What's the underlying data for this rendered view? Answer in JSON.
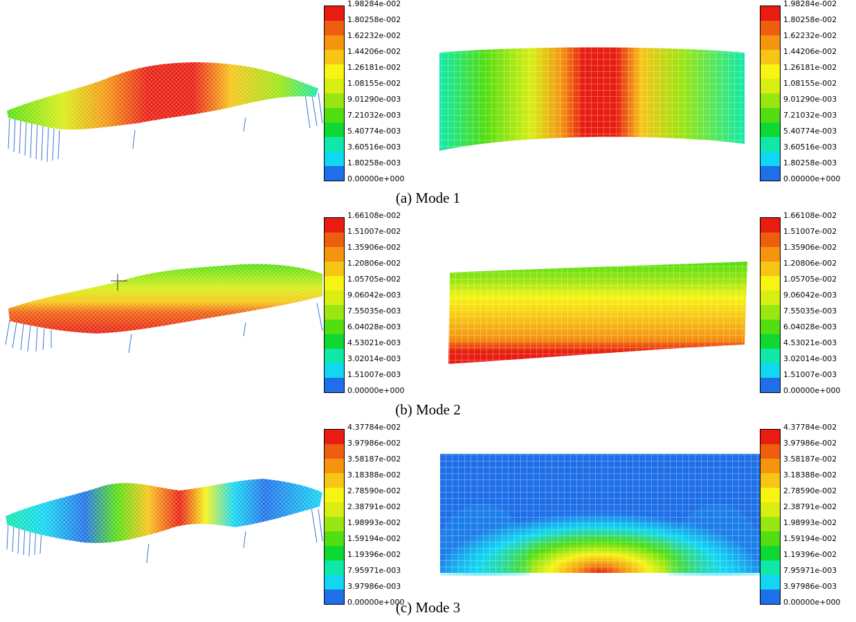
{
  "palette": [
    "#1f6fe8",
    "#11d7f2",
    "#10e8a8",
    "#10d832",
    "#52de10",
    "#98e612",
    "#d8ee12",
    "#f7f312",
    "#f7c514",
    "#f4940f",
    "#ee5e0f",
    "#e81c10"
  ],
  "modes": [
    {
      "caption": "(a) Mode 1",
      "legend_labels": [
        "1.98284e-002",
        "1.80258e-002",
        "1.62232e-002",
        "1.44206e-002",
        "1.26181e-002",
        "1.08155e-002",
        "9.01290e-003",
        "7.21032e-003",
        "5.40774e-003",
        "3.60516e-003",
        "1.80258e-003",
        "0.00000e+000"
      ]
    },
    {
      "caption": "(b) Mode 2",
      "legend_labels": [
        "1.66108e-002",
        "1.51007e-002",
        "1.35906e-002",
        "1.20806e-002",
        "1.05705e-002",
        "9.06042e-003",
        "7.55035e-003",
        "6.04028e-003",
        "4.53021e-003",
        "3.02014e-003",
        "1.51007e-003",
        "0.00000e+000"
      ]
    },
    {
      "caption": "(c) Mode 3",
      "legend_labels": [
        "4.37784e-002",
        "3.97986e-002",
        "3.58187e-002",
        "3.18388e-002",
        "2.78590e-002",
        "2.38791e-002",
        "1.98993e-002",
        "1.59194e-002",
        "1.19396e-002",
        "7.95971e-003",
        "3.97986e-003",
        "0.00000e+000"
      ]
    }
  ]
}
